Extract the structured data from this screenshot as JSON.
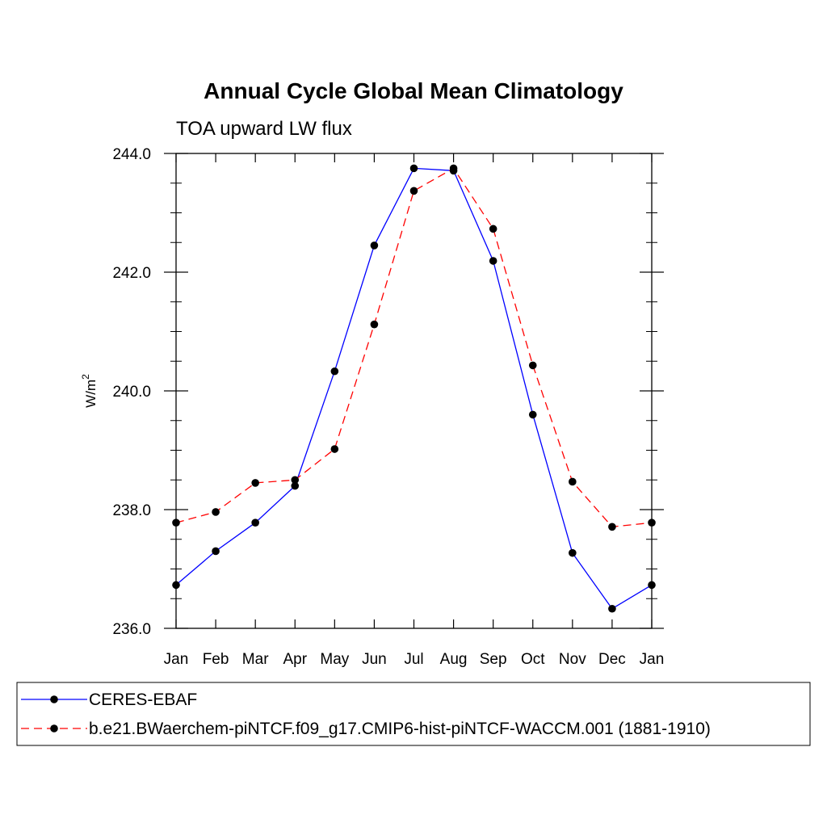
{
  "chart_data": {
    "type": "line",
    "title": "Annual Cycle Global Mean Climatology",
    "subtitle": "TOA upward LW flux",
    "ylabel": "W/m",
    "ylabel_superscript": "2",
    "xlabel": "",
    "categories": [
      "Jan",
      "Feb",
      "Mar",
      "Apr",
      "May",
      "Jun",
      "Jul",
      "Aug",
      "Sep",
      "Oct",
      "Nov",
      "Dec",
      "Jan"
    ],
    "ylim": [
      236.0,
      244.0
    ],
    "yticks": [
      "236.0",
      "238.0",
      "240.0",
      "242.0",
      "244.0"
    ],
    "grid": false,
    "legend_position": "bottom",
    "series": [
      {
        "name": "CERES-EBAF",
        "color": "#0000ff",
        "dash": "solid",
        "marker": "filled-circle",
        "values": [
          236.73,
          237.3,
          237.78,
          238.4,
          240.33,
          242.45,
          243.75,
          243.71,
          242.19,
          239.6,
          237.27,
          236.33,
          236.73
        ]
      },
      {
        "name": "b.e21.BWaerchem-piNTCF.f09_g17.CMIP6-hist-piNTCF-WACCM.001 (1881-1910)",
        "color": "#ff0000",
        "dash": "dashed",
        "marker": "filled-circle",
        "values": [
          237.78,
          237.96,
          238.45,
          238.5,
          239.02,
          241.12,
          243.37,
          243.75,
          242.73,
          240.43,
          238.47,
          237.71,
          237.78
        ]
      }
    ]
  }
}
